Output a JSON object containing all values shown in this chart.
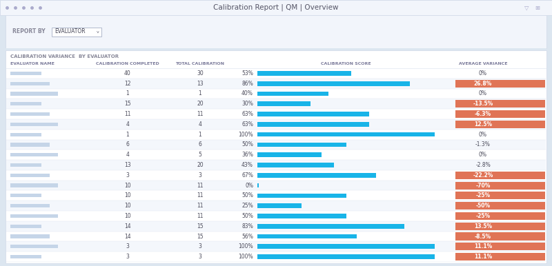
{
  "title": "Calibration Report | QM | Overview",
  "report_by_label": "REPORT BY",
  "report_by_value": "EVALUATOR",
  "section_title": "CALIBRATION VARIANCE  BY EVALUATOR",
  "rows": [
    {
      "completed": 40,
      "total": 30,
      "score_pct": 53,
      "variance": "0%",
      "variance_highlight": false
    },
    {
      "completed": 12,
      "total": 13,
      "score_pct": 86,
      "variance": "26.8%",
      "variance_highlight": true
    },
    {
      "completed": 1,
      "total": 1,
      "score_pct": 40,
      "variance": "0%",
      "variance_highlight": false
    },
    {
      "completed": 15,
      "total": 20,
      "score_pct": 30,
      "variance": "-13.5%",
      "variance_highlight": true
    },
    {
      "completed": 11,
      "total": 11,
      "score_pct": 63,
      "variance": "-6.3%",
      "variance_highlight": true
    },
    {
      "completed": 4,
      "total": 4,
      "score_pct": 63,
      "variance": "12.5%",
      "variance_highlight": true
    },
    {
      "completed": 1,
      "total": 1,
      "score_pct": 100,
      "variance": "0%",
      "variance_highlight": false
    },
    {
      "completed": 6,
      "total": 6,
      "score_pct": 50,
      "variance": "-1.3%",
      "variance_highlight": false
    },
    {
      "completed": 4,
      "total": 5,
      "score_pct": 36,
      "variance": "0%",
      "variance_highlight": false
    },
    {
      "completed": 13,
      "total": 20,
      "score_pct": 43,
      "variance": "-2.8%",
      "variance_highlight": false
    },
    {
      "completed": 3,
      "total": 3,
      "score_pct": 67,
      "variance": "-22.2%",
      "variance_highlight": true
    },
    {
      "completed": 10,
      "total": 11,
      "score_pct": 0,
      "variance": "-70%",
      "variance_highlight": true
    },
    {
      "completed": 10,
      "total": 11,
      "score_pct": 50,
      "variance": "-25%",
      "variance_highlight": true
    },
    {
      "completed": 10,
      "total": 11,
      "score_pct": 25,
      "variance": "-50%",
      "variance_highlight": true
    },
    {
      "completed": 10,
      "total": 11,
      "score_pct": 50,
      "variance": "-25%",
      "variance_highlight": true
    },
    {
      "completed": 14,
      "total": 15,
      "score_pct": 83,
      "variance": "13.5%",
      "variance_highlight": true
    },
    {
      "completed": 14,
      "total": 15,
      "score_pct": 56,
      "variance": "-8.5%",
      "variance_highlight": true
    },
    {
      "completed": 3,
      "total": 3,
      "score_pct": 100,
      "variance": "11.1%",
      "variance_highlight": true
    },
    {
      "completed": 3,
      "total": 3,
      "score_pct": 100,
      "variance": "11.1%",
      "variance_highlight": true
    }
  ],
  "bg_color": "#dce6f0",
  "topbar_color": "#f2f5fb",
  "topbar_border": "#d0d8e8",
  "panel_color": "#f5f8fc",
  "content_bg": "#ffffff",
  "bar_color": "#18b4e8",
  "highlight_color": "#e07456",
  "text_dark": "#4a4a5a",
  "text_header": "#7a7a9a",
  "text_light": "#aaaacc",
  "row_even": "#ffffff",
  "row_odd": "#f4f7fc",
  "divider": "#e0e6f0",
  "name_blur_color": "#c5d5e8"
}
